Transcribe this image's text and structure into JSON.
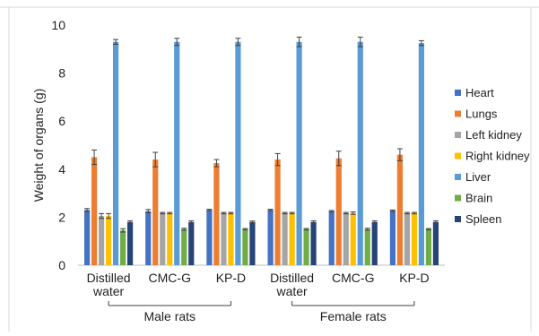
{
  "chart_data": {
    "type": "bar",
    "ylabel": "Weight of organs (g)",
    "ylim": [
      0,
      10
    ],
    "yticks": [
      "0",
      "2",
      "4",
      "6",
      "8",
      "10"
    ],
    "categories": [
      "Distilled water",
      "CMC-G",
      "KP-D",
      "Distilled water",
      "CMC-G",
      "KP-D"
    ],
    "category_lines": [
      [
        "Distilled",
        "water"
      ],
      [
        "CMC-G"
      ],
      [
        "KP-D"
      ],
      [
        "Distilled",
        "water"
      ],
      [
        "CMC-G"
      ],
      [
        "KP-D"
      ]
    ],
    "groups": [
      {
        "label": "Male rats",
        "categories": [
          0,
          1,
          2
        ]
      },
      {
        "label": "Female rats",
        "categories": [
          3,
          4,
          5
        ]
      }
    ],
    "legend_position": "right",
    "grid": false,
    "series": [
      {
        "name": "Heart",
        "color": "#4472C4",
        "values": [
          2.3,
          2.25,
          2.3,
          2.3,
          2.25,
          2.27
        ],
        "errors": [
          0.06,
          0.07,
          0.03,
          0.03,
          0.03,
          0.03
        ]
      },
      {
        "name": "Lungs",
        "color": "#ED7D31",
        "values": [
          4.5,
          4.4,
          4.25,
          4.4,
          4.45,
          4.6
        ],
        "errors": [
          0.3,
          0.3,
          0.15,
          0.25,
          0.3,
          0.25
        ]
      },
      {
        "name": "Left kidney",
        "color": "#A5A5A5",
        "values": [
          2.05,
          2.17,
          2.17,
          2.17,
          2.17,
          2.17
        ],
        "errors": [
          0.1,
          0.03,
          0.03,
          0.03,
          0.03,
          0.03
        ]
      },
      {
        "name": "Right kidney",
        "color": "#FFC000",
        "values": [
          2.05,
          2.17,
          2.17,
          2.17,
          2.17,
          2.17
        ],
        "errors": [
          0.1,
          0.03,
          0.03,
          0.03,
          0.05,
          0.03
        ]
      },
      {
        "name": "Liver",
        "color": "#5B9BD5",
        "values": [
          9.3,
          9.3,
          9.3,
          9.3,
          9.3,
          9.25
        ],
        "errors": [
          0.1,
          0.15,
          0.15,
          0.2,
          0.2,
          0.1
        ]
      },
      {
        "name": "Brain",
        "color": "#70AD47",
        "values": [
          1.45,
          1.5,
          1.5,
          1.5,
          1.5,
          1.5
        ],
        "errors": [
          0.07,
          0.04,
          0.03,
          0.03,
          0.04,
          0.03
        ]
      },
      {
        "name": "Spleen",
        "color": "#264478",
        "values": [
          1.8,
          1.8,
          1.8,
          1.8,
          1.8,
          1.8
        ],
        "errors": [
          0.05,
          0.05,
          0.04,
          0.05,
          0.05,
          0.05
        ]
      }
    ]
  }
}
